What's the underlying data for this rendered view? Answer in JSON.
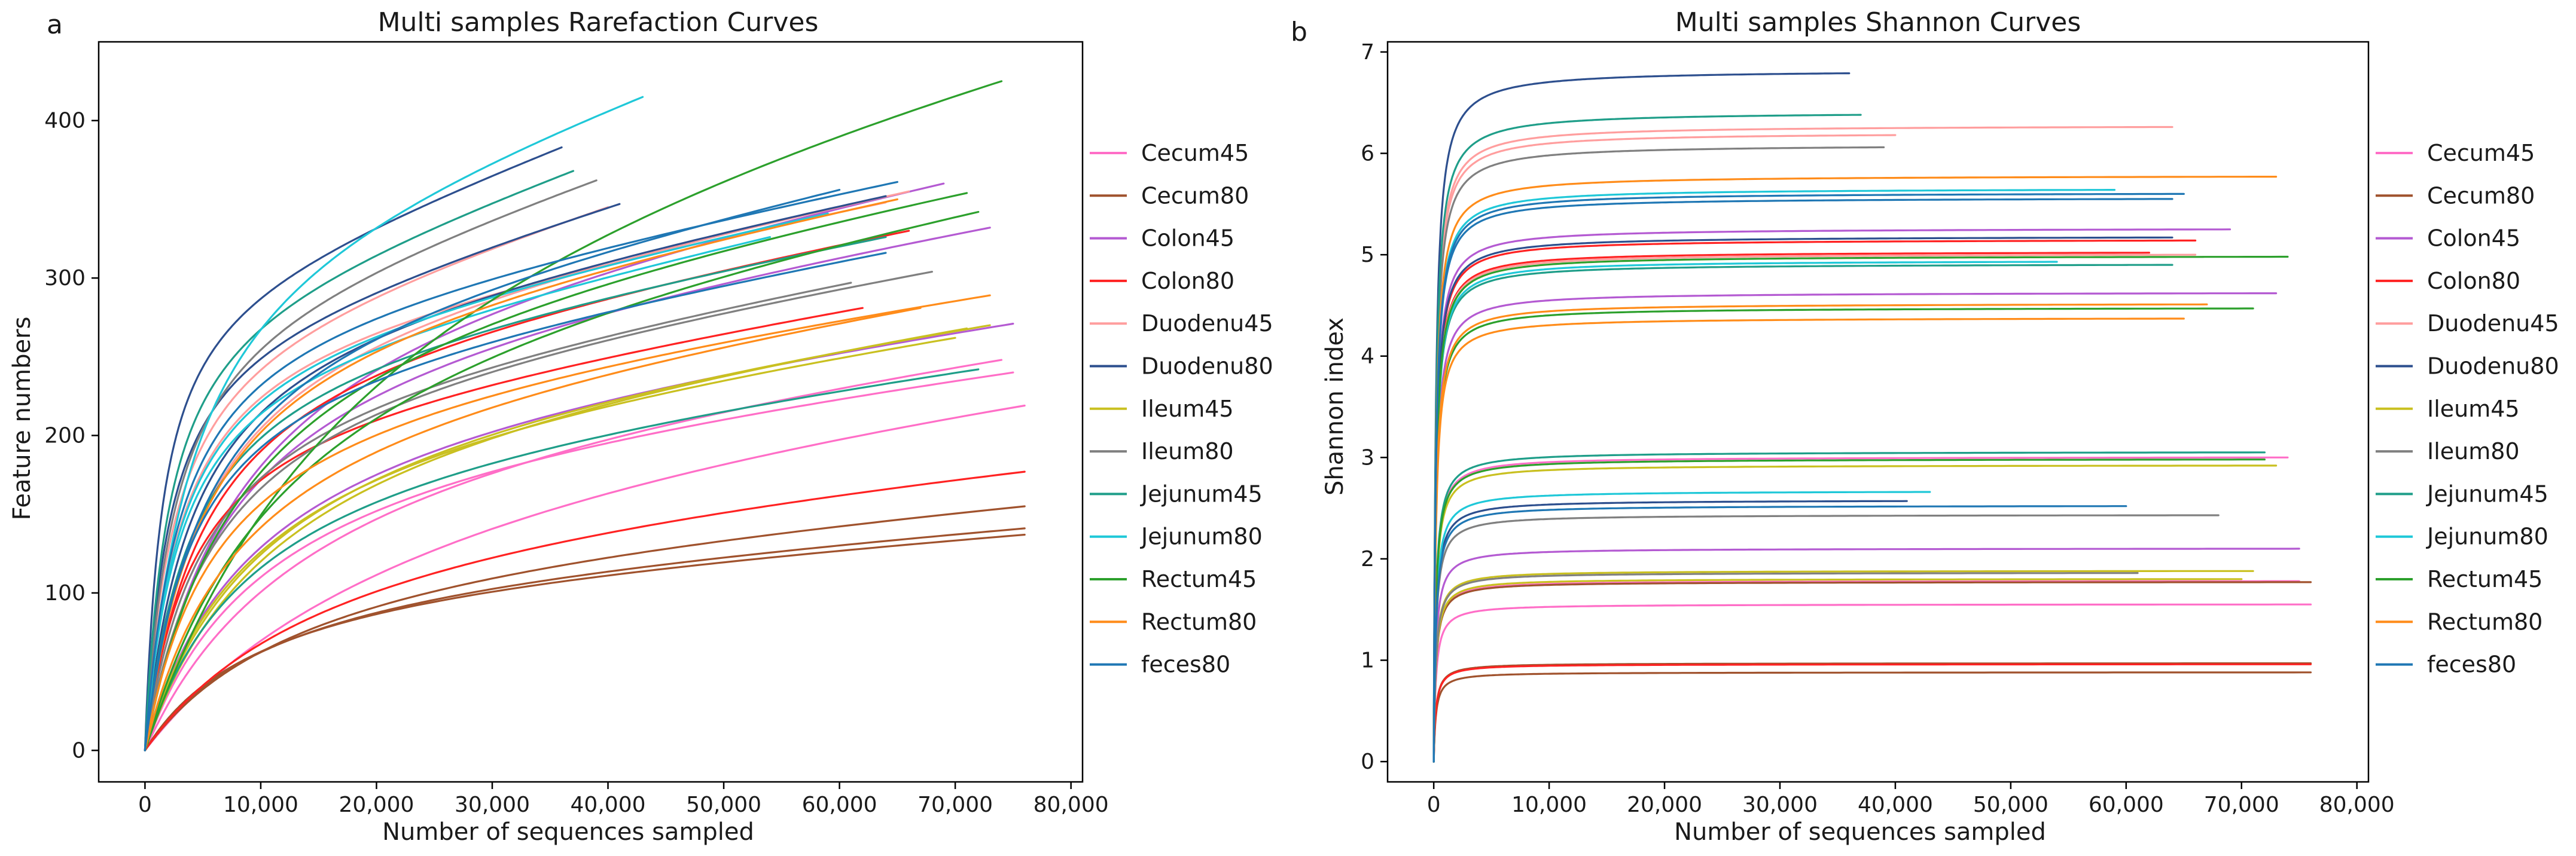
{
  "chart_data": [
    {
      "type": "line",
      "panel_label": "a",
      "title": "Multi samples Rarefaction Curves",
      "xlabel": "Number of sequences sampled",
      "ylabel": "Feature numbers",
      "xlim": [
        -4000,
        81000
      ],
      "ylim": [
        -20,
        450
      ],
      "x_ticks": [
        0,
        10000,
        20000,
        30000,
        40000,
        50000,
        60000,
        70000,
        80000
      ],
      "x_tick_labels": [
        "0",
        "10,000",
        "20,000",
        "30,000",
        "40,000",
        "50,000",
        "60,000",
        "70,000",
        "80,000"
      ],
      "y_ticks": [
        0,
        100,
        200,
        300,
        400
      ],
      "y_tick_labels": [
        "0",
        "100",
        "200",
        "300",
        "400"
      ],
      "grid": false,
      "legend_position": "outside-right",
      "curve_model": "y = a*x/(b+x) + c*x",
      "series": [
        {
          "name": "Cecum45",
          "color": "#ff6ec7",
          "curves": [
            [
              76000,
              219,
              25000
            ],
            [
              74000,
              248,
              14000
            ],
            [
              75000,
              240,
              10000
            ]
          ]
        },
        {
          "name": "Cecum80",
          "color": "#a0522d",
          "curves": [
            [
              76000,
              155,
              14000
            ],
            [
              76000,
              141,
              11000
            ],
            [
              76000,
              137,
              10000
            ]
          ]
        },
        {
          "name": "Colon45",
          "color": "#b45ad2",
          "curves": [
            [
              73000,
              332,
              7000
            ],
            [
              69000,
              360,
              8000
            ],
            [
              75000,
              271,
              9000
            ]
          ]
        },
        {
          "name": "Colon80",
          "color": "#ff2222",
          "curves": [
            [
              76000,
              177,
              16000
            ],
            [
              62000,
              281,
              4000
            ],
            [
              66000,
              330,
              5000
            ]
          ]
        },
        {
          "name": "Duodenu45",
          "color": "#ff9e9e",
          "curves": [
            [
              40000,
              345,
              2500
            ],
            [
              64000,
              348,
              3000
            ],
            [
              66000,
              355,
              5000
            ]
          ]
        },
        {
          "name": "Duodenu80",
          "color": "#2d4f8e",
          "curves": [
            [
              36000,
              383,
              1500
            ],
            [
              41000,
              347,
              2000
            ],
            [
              64000,
              352,
              4000
            ]
          ]
        },
        {
          "name": "Ileum45",
          "color": "#c9c020",
          "curves": [
            [
              73000,
              270,
              10000
            ],
            [
              71000,
              268,
              11000
            ],
            [
              70000,
              262,
              9000
            ]
          ]
        },
        {
          "name": "Ileum80",
          "color": "#808080",
          "curves": [
            [
              39000,
              362,
              2500
            ],
            [
              68000,
              304,
              6000
            ],
            [
              61000,
              297,
              5000
            ]
          ]
        },
        {
          "name": "Jejunum45",
          "color": "#1f9e89",
          "curves": [
            [
              37000,
              368,
              2000
            ],
            [
              72000,
              242,
              9000
            ],
            [
              64000,
              326,
              4000
            ]
          ]
        },
        {
          "name": "Jejunum80",
          "color": "#1fc8d8",
          "curves": [
            [
              43000,
              415,
              4000
            ],
            [
              59000,
              341,
              3000
            ],
            [
              54000,
              326,
              3000
            ]
          ]
        },
        {
          "name": "Rectum45",
          "color": "#2ca02c",
          "curves": [
            [
              74000,
              425,
              20000
            ],
            [
              71000,
              354,
              8000
            ],
            [
              72000,
              342,
              12000
            ]
          ]
        },
        {
          "name": "Rectum80",
          "color": "#ff8c1a",
          "curves": [
            [
              73000,
              289,
              6000
            ],
            [
              67000,
              281,
              8000
            ],
            [
              65000,
              350,
              5000
            ]
          ]
        },
        {
          "name": "feces80",
          "color": "#1f77b4",
          "curves": [
            [
              65000,
              361,
              3000
            ],
            [
              64000,
              316,
              4000
            ],
            [
              60000,
              356,
              5000
            ]
          ]
        }
      ]
    },
    {
      "type": "line",
      "panel_label": "b",
      "title": "Multi samples Shannon Curves",
      "xlabel": "Number of sequences sampled",
      "ylabel": "Shannon index",
      "xlim": [
        -4000,
        81000
      ],
      "ylim": [
        -0.2,
        7.1
      ],
      "x_ticks": [
        0,
        10000,
        20000,
        30000,
        40000,
        50000,
        60000,
        70000,
        80000
      ],
      "x_tick_labels": [
        "0",
        "10,000",
        "20,000",
        "30,000",
        "40,000",
        "50,000",
        "60,000",
        "70,000",
        "80,000"
      ],
      "y_ticks": [
        0,
        1,
        2,
        3,
        4,
        5,
        6,
        7
      ],
      "y_tick_labels": [
        "0",
        "1",
        "2",
        "3",
        "4",
        "5",
        "6",
        "7"
      ],
      "grid": false,
      "legend_position": "outside-right",
      "curve_model": "y = v*x/(b+x)",
      "series": [
        {
          "name": "Cecum45",
          "color": "#ff6ec7",
          "curves": [
            [
              76000,
              1.55
            ],
            [
              74000,
              3.0
            ],
            [
              75000,
              1.78
            ]
          ]
        },
        {
          "name": "Cecum80",
          "color": "#a0522d",
          "curves": [
            [
              76000,
              0.97
            ],
            [
              76000,
              0.88
            ],
            [
              76000,
              1.77
            ]
          ]
        },
        {
          "name": "Colon45",
          "color": "#b45ad2",
          "curves": [
            [
              73000,
              4.62
            ],
            [
              69000,
              5.25
            ],
            [
              75000,
              2.1
            ]
          ]
        },
        {
          "name": "Colon80",
          "color": "#ff2222",
          "curves": [
            [
              76000,
              0.96
            ],
            [
              62000,
              5.02
            ],
            [
              66000,
              5.14
            ]
          ]
        },
        {
          "name": "Duodenu45",
          "color": "#ff9e9e",
          "curves": [
            [
              40000,
              6.18
            ],
            [
              64000,
              6.26
            ],
            [
              66000,
              5.0
            ]
          ]
        },
        {
          "name": "Duodenu80",
          "color": "#2d4f8e",
          "curves": [
            [
              36000,
              6.79
            ],
            [
              41000,
              2.57
            ],
            [
              64000,
              5.17
            ]
          ]
        },
        {
          "name": "Ileum45",
          "color": "#c9c020",
          "curves": [
            [
              73000,
              2.92
            ],
            [
              71000,
              1.88
            ],
            [
              70000,
              1.8
            ]
          ]
        },
        {
          "name": "Ileum80",
          "color": "#808080",
          "curves": [
            [
              39000,
              6.06
            ],
            [
              68000,
              2.43
            ],
            [
              61000,
              1.86
            ]
          ]
        },
        {
          "name": "Jejunum45",
          "color": "#1f9e89",
          "curves": [
            [
              37000,
              6.38
            ],
            [
              72000,
              3.05
            ],
            [
              64000,
              4.9
            ]
          ]
        },
        {
          "name": "Jejunum80",
          "color": "#1fc8d8",
          "curves": [
            [
              43000,
              2.66
            ],
            [
              59000,
              5.64
            ],
            [
              54000,
              4.93
            ]
          ]
        },
        {
          "name": "Rectum45",
          "color": "#2ca02c",
          "curves": [
            [
              74000,
              4.98
            ],
            [
              71000,
              4.47
            ],
            [
              72000,
              2.98
            ]
          ]
        },
        {
          "name": "Rectum80",
          "color": "#ff8c1a",
          "curves": [
            [
              73000,
              5.77
            ],
            [
              67000,
              4.51
            ],
            [
              65000,
              4.37
            ]
          ]
        },
        {
          "name": "feces80",
          "color": "#1f77b4",
          "curves": [
            [
              65000,
              5.6
            ],
            [
              64000,
              5.55
            ],
            [
              60000,
              2.52
            ]
          ]
        }
      ]
    }
  ]
}
